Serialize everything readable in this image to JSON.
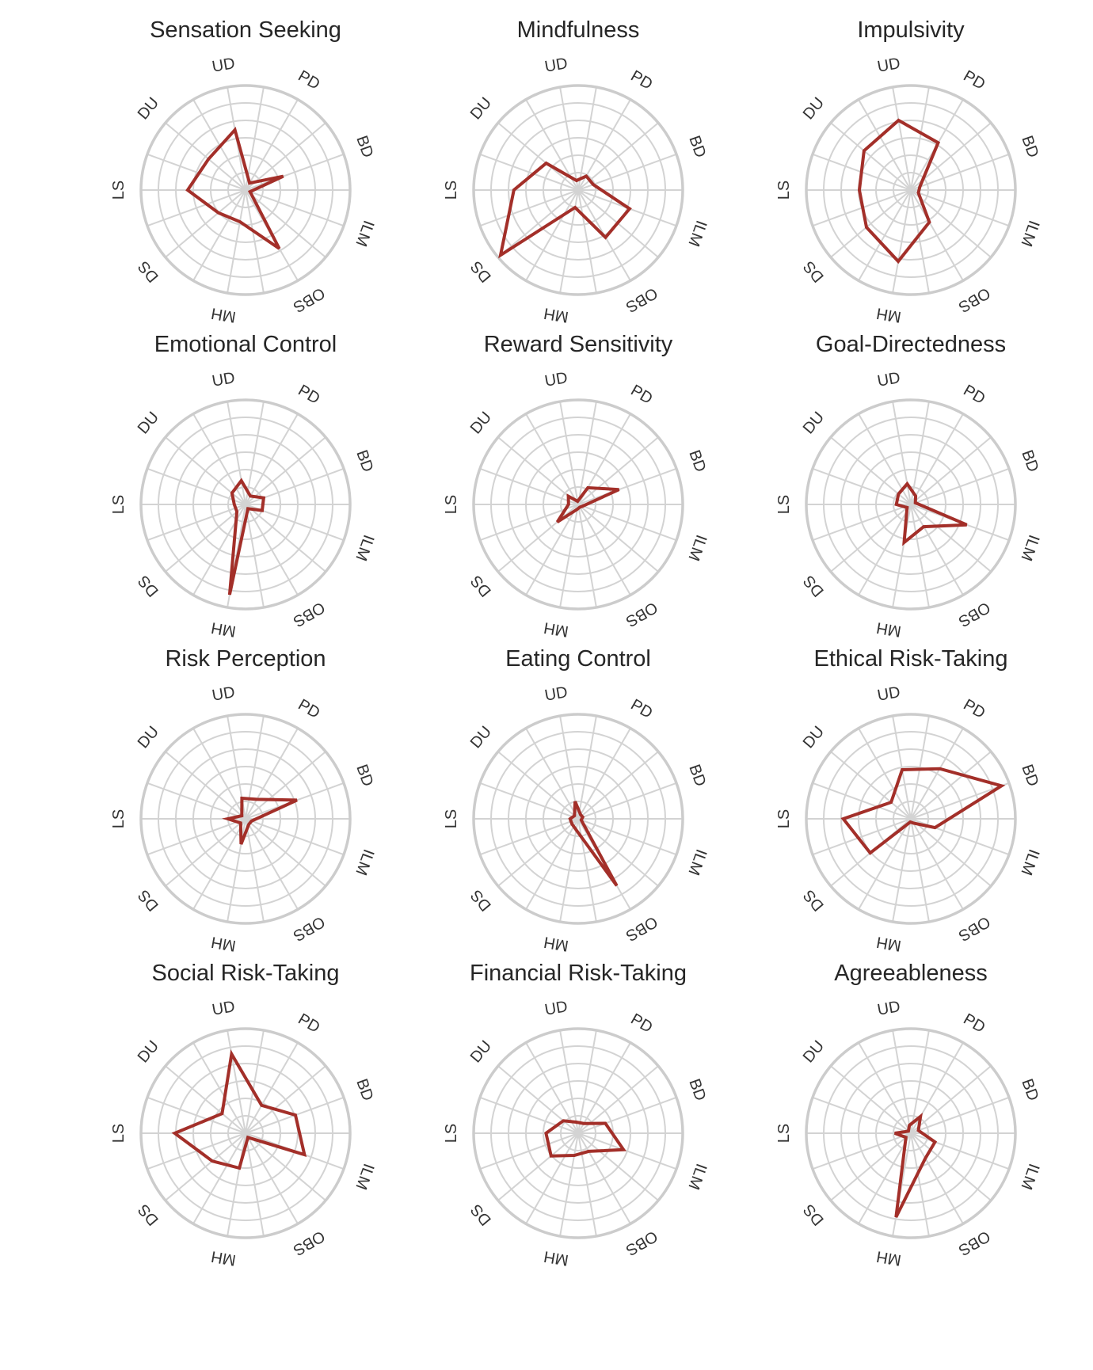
{
  "chart_data": [
    {
      "type": "radar",
      "title": "Sensation Seeking",
      "axes": [
        "UD",
        "PD",
        "BD",
        "ILM",
        "OBS",
        "MH",
        "DS",
        "LS",
        "DU"
      ],
      "values": [
        3.8,
        0.5,
        2.5,
        0.3,
        4.2,
        2.0,
        2.2,
        3.6,
        3.0
      ],
      "rmax": 6.5
    },
    {
      "type": "radar",
      "title": "Mindfulness",
      "axes": [
        "UD",
        "PD",
        "BD",
        "ILM",
        "OBS",
        "MH",
        "DS",
        "LS",
        "DU"
      ],
      "values": [
        0.6,
        1.0,
        1.0,
        3.4,
        3.4,
        1.1,
        6.3,
        4.0,
        2.6
      ],
      "rmax": 6.5
    },
    {
      "type": "radar",
      "title": "Impulsivity",
      "axes": [
        "UD",
        "PD",
        "BD",
        "ILM",
        "OBS",
        "MH",
        "DS",
        "LS",
        "DU"
      ],
      "values": [
        4.4,
        3.4,
        0.6,
        0.5,
        2.3,
        4.5,
        3.6,
        3.2,
        3.8
      ],
      "rmax": 6.5
    },
    {
      "type": "radar",
      "title": "Emotional Control",
      "axes": [
        "UD",
        "PD",
        "BD",
        "ILM",
        "OBS",
        "MH",
        "DS",
        "LS",
        "DU"
      ],
      "values": [
        1.5,
        0.6,
        1.2,
        1.1,
        0.3,
        5.7,
        0.7,
        0.7,
        1.1
      ],
      "rmax": 6.5
    },
    {
      "type": "radar",
      "title": "Reward Sensitivity",
      "axes": [
        "UD",
        "PD",
        "BD",
        "ILM",
        "OBS",
        "MH",
        "DS",
        "LS",
        "DU"
      ],
      "values": [
        0.2,
        1.2,
        2.7,
        0.3,
        0.2,
        0.3,
        1.7,
        0.6,
        0.8
      ],
      "rmax": 6.5
    },
    {
      "type": "radar",
      "title": "Goal-Directedness",
      "axes": [
        "UD",
        "PD",
        "BD",
        "ILM",
        "OBS",
        "MH",
        "DS",
        "LS",
        "DU"
      ],
      "values": [
        1.3,
        0.6,
        0.3,
        3.7,
        1.6,
        2.4,
        0.3,
        0.9,
        1.0
      ],
      "rmax": 6.5
    },
    {
      "type": "radar",
      "title": "Risk Perception",
      "axes": [
        "UD",
        "PD",
        "BD",
        "ILM",
        "OBS",
        "MH",
        "DS",
        "LS",
        "DU"
      ],
      "values": [
        1.3,
        1.4,
        3.4,
        0.4,
        0.4,
        1.6,
        0.4,
        1.1,
        0.3
      ],
      "rmax": 6.5
    },
    {
      "type": "radar",
      "title": "Eating Control",
      "axes": [
        "UD",
        "PD",
        "BD",
        "ILM",
        "OBS",
        "MH",
        "DS",
        "LS",
        "DU"
      ],
      "values": [
        1.1,
        0.3,
        0.3,
        0.2,
        4.8,
        0.7,
        0.5,
        0.5,
        0.3
      ],
      "rmax": 6.5
    },
    {
      "type": "radar",
      "title": "Ethical Risk-Taking",
      "axes": [
        "UD",
        "PD",
        "BD",
        "ILM",
        "OBS",
        "MH",
        "DS",
        "LS",
        "DU"
      ],
      "values": [
        3.1,
        3.6,
        6.0,
        1.6,
        0.3,
        0.2,
        3.3,
        4.2,
        1.6
      ],
      "rmax": 6.5
    },
    {
      "type": "radar",
      "title": "Social Risk-Taking",
      "axes": [
        "UD",
        "PD",
        "BD",
        "ILM",
        "OBS",
        "MH",
        "DS",
        "LS",
        "DU"
      ],
      "values": [
        5.0,
        2.0,
        3.3,
        3.9,
        0.3,
        2.2,
        2.7,
        4.4,
        1.9
      ],
      "rmax": 6.5
    },
    {
      "type": "radar",
      "title": "Financial Risk-Taking",
      "axes": [
        "UD",
        "PD",
        "BD",
        "ILM",
        "OBS",
        "MH",
        "DS",
        "LS",
        "DU"
      ],
      "values": [
        0.7,
        0.7,
        1.8,
        3.0,
        1.3,
        1.4,
        2.2,
        2.0,
        1.2
      ],
      "rmax": 6.5
    },
    {
      "type": "radar",
      "title": "Agreeableness",
      "axes": [
        "UD",
        "PD",
        "BD",
        "ILM",
        "OBS",
        "MH",
        "DS",
        "LS",
        "DU"
      ],
      "values": [
        0.5,
        1.2,
        0.5,
        1.6,
        1.8,
        5.3,
        0.4,
        1.0,
        0.2
      ],
      "rmax": 6.5
    }
  ],
  "style": {
    "series_color": "#a32f29",
    "grid_color": "#d3d3d3",
    "outer_ring_color": "#cccccc",
    "label_color": "#333333",
    "title_color": "#262626",
    "grid_rings": 6,
    "legend": "none"
  }
}
